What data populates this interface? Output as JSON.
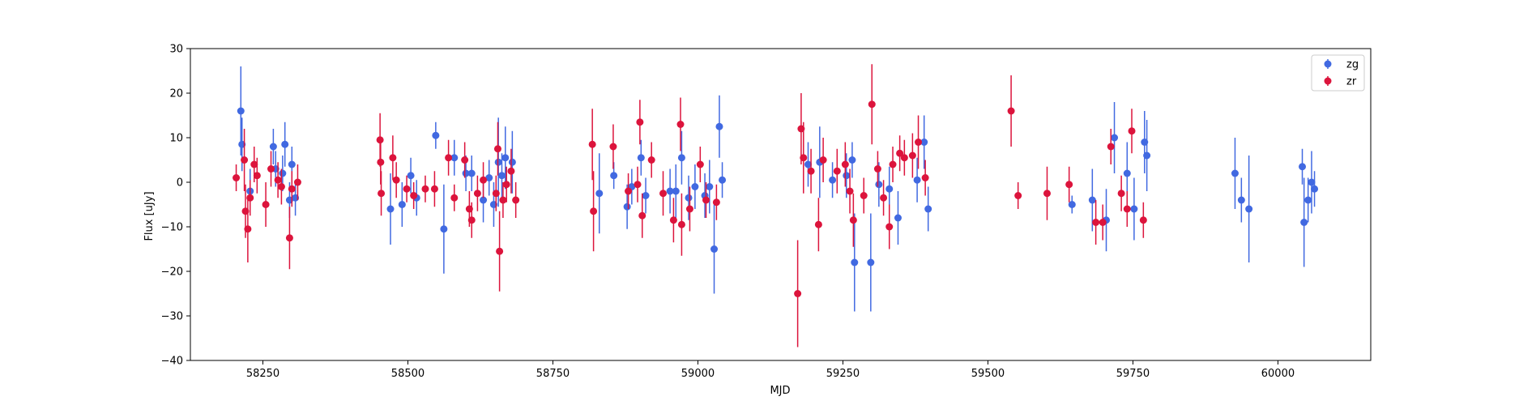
{
  "chart_data": {
    "type": "scatter",
    "xlabel": "MJD",
    "ylabel": "Flux [uJy]",
    "xlim": [
      58125,
      60160
    ],
    "ylim": [
      -40,
      30
    ],
    "xticks": [
      58250,
      58500,
      58750,
      59000,
      59250,
      59500,
      59750,
      60000
    ],
    "yticks": [
      -40,
      -30,
      -20,
      -10,
      0,
      10,
      20,
      30
    ],
    "grid": false,
    "legend": "top-right",
    "error_bars": true,
    "series": [
      {
        "name": "zg",
        "color": "#4169E1",
        "points": [
          [
            58212,
            16,
            10
          ],
          [
            58214,
            8.5,
            6
          ],
          [
            58228,
            -2,
            5
          ],
          [
            58268,
            8,
            4
          ],
          [
            58272,
            3,
            4
          ],
          [
            58284,
            2,
            4
          ],
          [
            58288,
            8.5,
            5
          ],
          [
            58296,
            -4,
            4
          ],
          [
            58300,
            4,
            4
          ],
          [
            58306,
            -3.5,
            4
          ],
          [
            58470,
            -6,
            8
          ],
          [
            58490,
            -5,
            5
          ],
          [
            58505,
            1.5,
            4
          ],
          [
            58515,
            -3.5,
            4
          ],
          [
            58548,
            10.5,
            3
          ],
          [
            58562,
            -10.5,
            10
          ],
          [
            58580,
            5.5,
            4
          ],
          [
            58600,
            2,
            4
          ],
          [
            58610,
            2,
            4
          ],
          [
            58630,
            -4,
            5
          ],
          [
            58640,
            1,
            4
          ],
          [
            58648,
            -5,
            5
          ],
          [
            58656,
            4.5,
            10
          ],
          [
            58662,
            1.5,
            5
          ],
          [
            58668,
            5.5,
            7
          ],
          [
            58680,
            4.5,
            7
          ],
          [
            58830,
            -2.5,
            9
          ],
          [
            58855,
            1.5,
            3
          ],
          [
            58878,
            -5.5,
            5
          ],
          [
            58886,
            -1,
            4
          ],
          [
            58902,
            5.5,
            4
          ],
          [
            58910,
            -3,
            4
          ],
          [
            58952,
            -2,
            5
          ],
          [
            58962,
            -2,
            6
          ],
          [
            58972,
            5.5,
            6
          ],
          [
            58984,
            -3.5,
            5
          ],
          [
            58995,
            -1,
            5
          ],
          [
            59012,
            -3,
            5
          ],
          [
            59020,
            -1,
            6
          ],
          [
            59028,
            -15,
            10
          ],
          [
            59037,
            12.5,
            7
          ],
          [
            59042,
            0.5,
            4
          ],
          [
            59190,
            4,
            5
          ],
          [
            59210,
            4.5,
            8
          ],
          [
            59232,
            0.5,
            4
          ],
          [
            59256,
            1.5,
            5
          ],
          [
            59266,
            5,
            4
          ],
          [
            59270,
            -18,
            11
          ],
          [
            59298,
            -18,
            11
          ],
          [
            59312,
            -0.5,
            5
          ],
          [
            59330,
            -1.5,
            5
          ],
          [
            59345,
            -8,
            6
          ],
          [
            59378,
            0.5,
            5
          ],
          [
            59390,
            9,
            6
          ],
          [
            59397,
            -6,
            5
          ],
          [
            59645,
            -5,
            2
          ],
          [
            59680,
            -4,
            7
          ],
          [
            59704,
            -8.5,
            7
          ],
          [
            59718,
            10,
            8
          ],
          [
            59740,
            2,
            7
          ],
          [
            59752,
            -6,
            7
          ],
          [
            59770,
            9,
            7
          ],
          [
            59774,
            6,
            8
          ],
          [
            59926,
            2,
            8
          ],
          [
            59937,
            -4,
            5
          ],
          [
            59950,
            -6,
            12
          ],
          [
            60042,
            3.5,
            4
          ],
          [
            60045,
            -9,
            10
          ],
          [
            60052,
            -4,
            5
          ],
          [
            60058,
            0,
            7
          ],
          [
            60063,
            -1.5,
            4
          ]
        ]
      },
      {
        "name": "zr",
        "color": "#DC143C",
        "points": [
          [
            58204,
            1,
            3
          ],
          [
            58218,
            5,
            7
          ],
          [
            58220,
            -6.5,
            6
          ],
          [
            58224,
            -10.5,
            7.5
          ],
          [
            58228,
            -3.5,
            4
          ],
          [
            58235,
            4,
            4
          ],
          [
            58240,
            1.5,
            4
          ],
          [
            58255,
            -5,
            5
          ],
          [
            58264,
            3,
            4
          ],
          [
            58276,
            0.5,
            4
          ],
          [
            58282,
            -1,
            4
          ],
          [
            58296,
            -12.5,
            7
          ],
          [
            58300,
            -1.5,
            4
          ],
          [
            58310,
            0,
            4
          ],
          [
            58452,
            9.5,
            6
          ],
          [
            58453,
            4.5,
            5
          ],
          [
            58454,
            -2.5,
            5
          ],
          [
            58474,
            5.5,
            5
          ],
          [
            58480,
            0.5,
            4
          ],
          [
            58498,
            -1.5,
            3
          ],
          [
            58510,
            -3,
            3
          ],
          [
            58530,
            -1.5,
            3
          ],
          [
            58546,
            -1.5,
            4
          ],
          [
            58570,
            5.5,
            4
          ],
          [
            58580,
            -3.5,
            3
          ],
          [
            58598,
            5,
            4
          ],
          [
            58606,
            -6,
            4
          ],
          [
            58610,
            -8.5,
            4
          ],
          [
            58620,
            -2.5,
            4
          ],
          [
            58630,
            0.5,
            4
          ],
          [
            58652,
            -2.5,
            4
          ],
          [
            58655,
            7.5,
            6
          ],
          [
            58658,
            -15.5,
            9
          ],
          [
            58664,
            -4,
            4
          ],
          [
            58670,
            -0.5,
            4
          ],
          [
            58678,
            2.5,
            5
          ],
          [
            58686,
            -4,
            4
          ],
          [
            58818,
            8.5,
            8
          ],
          [
            58820,
            -6.5,
            9
          ],
          [
            58854,
            8,
            5
          ],
          [
            58880,
            -2,
            4
          ],
          [
            58896,
            -0.5,
            4
          ],
          [
            58900,
            13.5,
            5
          ],
          [
            58904,
            -7.5,
            5
          ],
          [
            58920,
            5,
            4
          ],
          [
            58940,
            -2.5,
            5
          ],
          [
            58958,
            -8.5,
            5
          ],
          [
            58970,
            13,
            6
          ],
          [
            58972,
            -9.5,
            7
          ],
          [
            58986,
            -6,
            5
          ],
          [
            59004,
            4,
            4
          ],
          [
            59014,
            -4,
            4
          ],
          [
            59032,
            -4.5,
            4
          ],
          [
            59172,
            -25,
            12
          ],
          [
            59178,
            12,
            8
          ],
          [
            59182,
            5.5,
            8
          ],
          [
            59195,
            2.5,
            5
          ],
          [
            59208,
            -9.5,
            6
          ],
          [
            59216,
            5,
            5
          ],
          [
            59240,
            2.5,
            5
          ],
          [
            59254,
            4,
            5
          ],
          [
            59262,
            -2,
            5
          ],
          [
            59268,
            -8.5,
            6
          ],
          [
            59286,
            -3,
            4
          ],
          [
            59300,
            17.5,
            9
          ],
          [
            59310,
            3,
            4
          ],
          [
            59320,
            -3.5,
            4
          ],
          [
            59330,
            -10,
            5
          ],
          [
            59336,
            4,
            4
          ],
          [
            59348,
            6.5,
            4
          ],
          [
            59356,
            5.5,
            4
          ],
          [
            59370,
            6,
            5
          ],
          [
            59380,
            9,
            6
          ],
          [
            59392,
            1,
            4
          ],
          [
            59540,
            16,
            8
          ],
          [
            59552,
            -3,
            3
          ],
          [
            59602,
            -2.5,
            6
          ],
          [
            59640,
            -0.5,
            4
          ],
          [
            59686,
            -9,
            5
          ],
          [
            59698,
            -9,
            4
          ],
          [
            59712,
            8,
            4
          ],
          [
            59730,
            -2.5,
            4
          ],
          [
            59740,
            -6,
            4
          ],
          [
            59748,
            11.5,
            5
          ],
          [
            59768,
            -8.5,
            4
          ]
        ]
      }
    ]
  }
}
